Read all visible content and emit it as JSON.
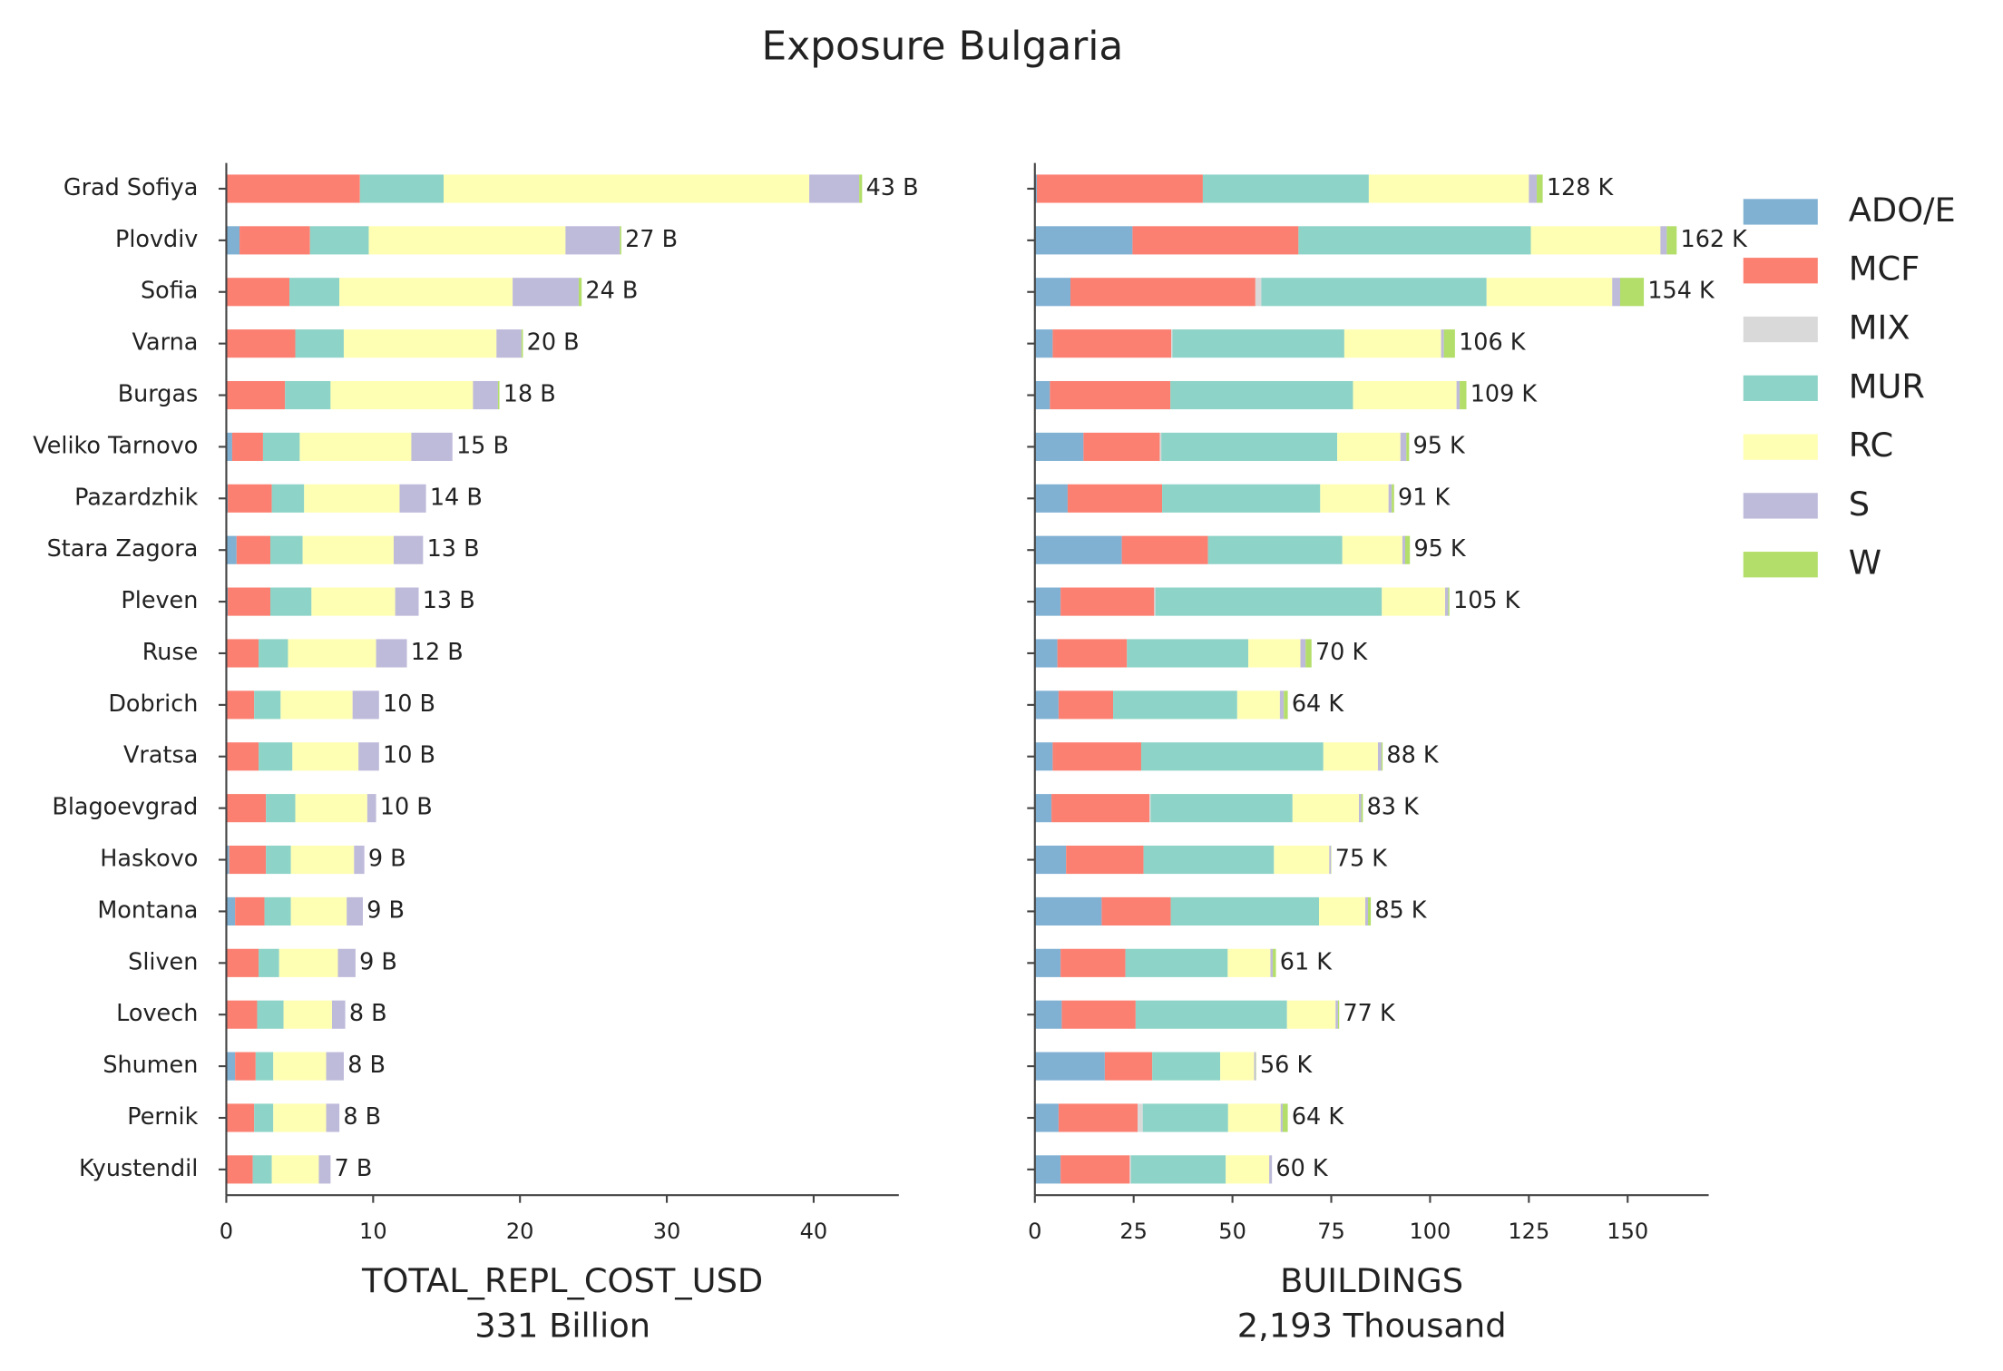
{
  "title": "Exposure Bulgaria",
  "chart_data": [
    {
      "type": "stacked-barh",
      "xlabel": "TOTAL_REPL_COST_USD",
      "xlabel_note": "331 Billion",
      "categories": [
        "Grad Sofiya",
        "Plovdiv",
        "Sofia",
        "Varna",
        "Burgas",
        "Veliko Tarnovo",
        "Pazardzhik",
        "Stara Zagora",
        "Pleven",
        "Ruse",
        "Dobrich",
        "Vratsa",
        "Blagoevgrad",
        "Haskovo",
        "Montana",
        "Sliven",
        "Lovech",
        "Shumen",
        "Pernik",
        "Kyustendil"
      ],
      "xlim": [
        0,
        45.8
      ],
      "xticks": [
        0,
        10,
        20,
        30,
        40
      ],
      "series": [
        {
          "name": "ADO/E",
          "color": "#80b1d3",
          "values": [
            0,
            0.9,
            0,
            0,
            0,
            0.4,
            0.1,
            0.7,
            0.1,
            0,
            0,
            0,
            0,
            0.2,
            0.6,
            0,
            0,
            0.6,
            0,
            0
          ]
        },
        {
          "name": "MCF",
          "color": "#fb8072",
          "values": [
            9.1,
            4.8,
            4.3,
            4.7,
            4.0,
            2.1,
            3.0,
            2.3,
            2.9,
            2.2,
            1.9,
            2.2,
            2.7,
            2.5,
            2.0,
            2.2,
            2.1,
            1.4,
            1.9,
            1.8
          ]
        },
        {
          "name": "MIX",
          "color": "#d9d9d9",
          "values": [
            0,
            0,
            0,
            0,
            0,
            0,
            0,
            0,
            0,
            0,
            0,
            0,
            0,
            0,
            0,
            0,
            0,
            0,
            0,
            0
          ]
        },
        {
          "name": "MUR",
          "color": "#8dd3c7",
          "values": [
            5.7,
            4.0,
            3.4,
            3.3,
            3.1,
            2.5,
            2.2,
            2.2,
            2.8,
            2.0,
            1.8,
            2.3,
            2.0,
            1.7,
            1.8,
            1.4,
            1.8,
            1.2,
            1.3,
            1.3
          ]
        },
        {
          "name": "RC",
          "color": "#ffffb3",
          "values": [
            24.9,
            13.4,
            11.8,
            10.4,
            9.7,
            7.6,
            6.5,
            6.2,
            5.7,
            6.0,
            4.9,
            4.5,
            4.9,
            4.3,
            3.8,
            4.0,
            3.3,
            3.6,
            3.6,
            3.2
          ]
        },
        {
          "name": "S",
          "color": "#bebada",
          "values": [
            3.4,
            3.7,
            4.5,
            1.7,
            1.7,
            2.8,
            1.8,
            2.0,
            1.6,
            2.1,
            1.8,
            1.4,
            0.6,
            0.7,
            1.1,
            1.2,
            0.9,
            1.2,
            0.9,
            0.8
          ]
        },
        {
          "name": "W",
          "color": "#b3de69",
          "values": [
            0.2,
            0.1,
            0.2,
            0.1,
            0.1,
            0,
            0,
            0,
            0,
            0,
            0,
            0,
            0,
            0,
            0,
            0,
            0,
            0,
            0,
            0
          ]
        }
      ],
      "totals": {
        "values": [
          43,
          27,
          24,
          20,
          18,
          15,
          14,
          13,
          13,
          12,
          10,
          10,
          10,
          9,
          9,
          9,
          8,
          8,
          8,
          7
        ],
        "value_labels": [
          "43 B",
          "27 B",
          "24 B",
          "20 B",
          "18 B",
          "15 B",
          "14 B",
          "13 B",
          "13 B",
          "12 B",
          "10 B",
          "10 B",
          "10 B",
          "9 B",
          "9 B",
          "9 B",
          "8 B",
          "8 B",
          "8 B",
          "7 B"
        ]
      }
    },
    {
      "type": "stacked-barh",
      "xlabel": "BUILDINGS",
      "xlabel_note": "2,193 Thousand",
      "xlim": [
        0,
        170.5
      ],
      "xticks": [
        0,
        25,
        50,
        75,
        100,
        125,
        150
      ],
      "series": [
        {
          "name": "ADO/E",
          "color": "#80b1d3",
          "values": [
            0.5,
            24.7,
            9,
            4.5,
            3.8,
            12.3,
            8.3,
            22,
            6.5,
            5.7,
            6,
            4.5,
            4.2,
            7.9,
            16.9,
            6.5,
            6.8,
            17.7,
            6,
            6.5
          ]
        },
        {
          "name": "MCF",
          "color": "#fb8072",
          "values": [
            42,
            42,
            46.8,
            30,
            30.5,
            19.3,
            23.9,
            21.8,
            23.7,
            17.6,
            13.8,
            22.4,
            24.8,
            19.6,
            17.5,
            16.4,
            18.7,
            12,
            20,
            17.5
          ]
        },
        {
          "name": "MIX",
          "color": "#d9d9d9",
          "values": [
            0,
            0,
            1.5,
            0.3,
            0,
            0.4,
            0,
            0,
            0.3,
            0,
            0,
            0,
            0.3,
            0,
            0,
            0,
            0,
            0,
            1.3,
            0.3
          ]
        },
        {
          "name": "MUR",
          "color": "#8dd3c7",
          "values": [
            42,
            58.8,
            57,
            43.5,
            46.2,
            44.5,
            40,
            34,
            57.3,
            30.7,
            31.4,
            46.1,
            35.9,
            33,
            37.5,
            25.9,
            38.3,
            17.2,
            21.6,
            24
          ]
        },
        {
          "name": "RC",
          "color": "#ffffb3",
          "values": [
            40.5,
            32.8,
            31.8,
            24.5,
            26.2,
            16,
            17.3,
            15.2,
            16,
            13.2,
            10.8,
            13.8,
            16.8,
            14,
            11.7,
            10.8,
            12.3,
            8.6,
            13.3,
            11
          ]
        },
        {
          "name": "S",
          "color": "#bebada",
          "values": [
            2,
            1.6,
            2,
            0.7,
            0.8,
            1.5,
            0.8,
            0.7,
            0.8,
            1.3,
            1,
            0.9,
            0.6,
            0.4,
            0.7,
            0.6,
            0.6,
            0.4,
            0.5,
            0.7
          ]
        },
        {
          "name": "W",
          "color": "#b3de69",
          "values": [
            1.5,
            2.5,
            6,
            2.8,
            1.7,
            0.7,
            0.6,
            1.2,
            0.3,
            1.5,
            1,
            0.3,
            0.4,
            0.1,
            0.7,
            0.8,
            0.3,
            0.1,
            1.3,
            0
          ]
        }
      ],
      "totals": {
        "values": [
          128,
          162,
          154,
          106,
          109,
          95,
          91,
          95,
          105,
          70,
          64,
          88,
          83,
          75,
          85,
          61,
          77,
          56,
          64,
          60
        ],
        "value_labels": [
          "128 K",
          "162 K",
          "154 K",
          "106 K",
          "109 K",
          "95 K",
          "91 K",
          "95 K",
          "105 K",
          "70 K",
          "64 K",
          "88 K",
          "83 K",
          "75 K",
          "85 K",
          "61 K",
          "77 K",
          "56 K",
          "64 K",
          "60 K"
        ]
      }
    }
  ]
}
